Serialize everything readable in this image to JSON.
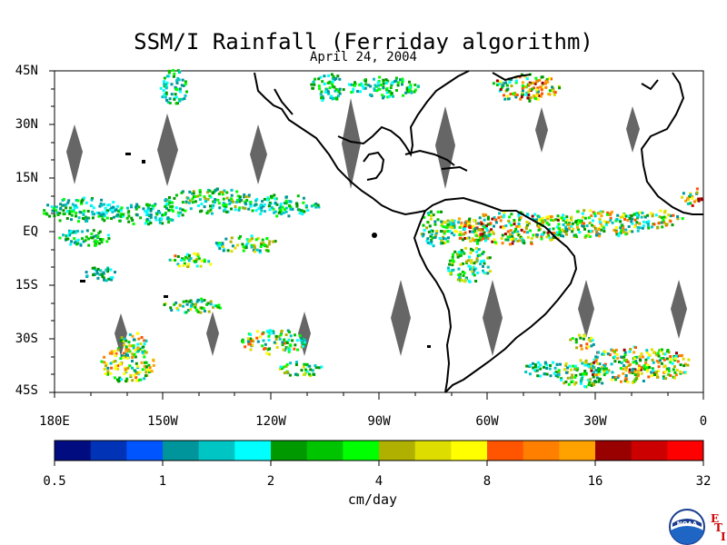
{
  "title": "SSM/I Rainfall (Ferriday algorithm)",
  "subtitle": "April 24, 2004",
  "lat_labels": [
    "45N",
    "30N",
    "15N",
    "EQ",
    "15S",
    "30S",
    "45S"
  ],
  "lon_labels": [
    "180E",
    "150W",
    "120W",
    "90W",
    "60W",
    "30W",
    "0"
  ],
  "colorbar": {
    "unit": "cm/day",
    "tick_labels": [
      "0.5",
      "1",
      "2",
      "4",
      "8",
      "16",
      "32"
    ],
    "colors": [
      "#000c80",
      "#0033b5",
      "#0055ff",
      "#00959a",
      "#00c5c5",
      "#00ffff",
      "#009900",
      "#00c400",
      "#00ff00",
      "#b0b000",
      "#dddd00",
      "#ffff00",
      "#ff5500",
      "#ff7f00",
      "#ffa200",
      "#990000",
      "#cc0000",
      "#ff0000"
    ]
  },
  "logo": {
    "text": "NOAA",
    "mark": [
      "E",
      "T",
      "I"
    ]
  }
}
